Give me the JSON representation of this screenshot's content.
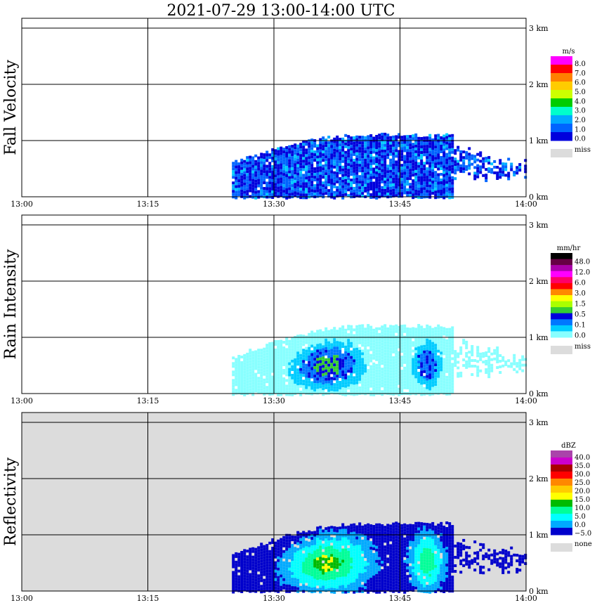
{
  "figure_title": "2021-07-29   13:00-14:00 UTC",
  "colors": {
    "frame": "#000000",
    "missing": "#dcdcdc",
    "background": "#ffffff"
  },
  "chart_data": [
    {
      "type": "heatmap",
      "title": "Fall Velocity",
      "x_ticks": [
        "13:00",
        "13:15",
        "13:30",
        "13:45",
        "14:00"
      ],
      "xlim": [
        "13:00",
        "14:00"
      ],
      "y_ticks": [
        "0 km",
        "1 km",
        "2 km",
        "3 km"
      ],
      "ylim": [
        0,
        3.2
      ],
      "grid": true,
      "background": "#ffffff",
      "legend": {
        "unit": "m/s",
        "placement": "right",
        "labels": [
          "8.0",
          "7.0",
          "6.0",
          "5.0",
          "4.0",
          "3.0",
          "2.0",
          "1.0",
          "0.0"
        ],
        "colors": [
          "#ff00ff",
          "#ff0000",
          "#ff8000",
          "#ffcc00",
          "#ccff00",
          "#00cc00",
          "#00ffcc",
          "#00aaff",
          "#0064ff",
          "#0000dd"
        ],
        "missing_label": "miss"
      },
      "echo_top_km": 1.1,
      "echo_start": "13:25",
      "echo_end": "14:00",
      "dominant_value_range": [
        0.0,
        2.0
      ]
    },
    {
      "type": "heatmap",
      "title": "Rain Intensity",
      "x_ticks": [
        "13:00",
        "13:15",
        "13:30",
        "13:45",
        "14:00"
      ],
      "xlim": [
        "13:00",
        "14:00"
      ],
      "y_ticks": [
        "0 km",
        "1 km",
        "2 km",
        "3 km"
      ],
      "ylim": [
        0,
        3.2
      ],
      "grid": true,
      "background": "#ffffff",
      "legend": {
        "unit": "mm/hr",
        "placement": "right",
        "labels": [
          "48.0",
          "12.0",
          "6.0",
          "3.0",
          "1.5",
          "0.5",
          "0.1",
          "0.0"
        ],
        "colors": [
          "#000000",
          "#660044",
          "#aa00aa",
          "#ff00ff",
          "#ff0066",
          "#ff0000",
          "#ff8800",
          "#ffff00",
          "#aaff00",
          "#33cc33",
          "#0000dd",
          "#0077ff",
          "#00ccff",
          "#88ffff"
        ],
        "missing_label": "miss"
      },
      "echo_top_km": 1.2,
      "echo_start": "13:25",
      "echo_end": "14:00",
      "peak_value_range": [
        0.5,
        1.5
      ]
    },
    {
      "type": "heatmap",
      "title": "Reflectivity",
      "x_ticks": [
        "13:00",
        "13:15",
        "13:30",
        "13:45",
        "14:00"
      ],
      "xlim": [
        "13:00",
        "14:00"
      ],
      "y_ticks": [
        "0 km",
        "1 km",
        "2 km",
        "3 km"
      ],
      "ylim": [
        0,
        3.2
      ],
      "grid": true,
      "background": "#dcdcdc",
      "legend": {
        "unit": "dBZ",
        "placement": "right",
        "labels": [
          "40.0",
          "35.0",
          "30.0",
          "25.0",
          "20.0",
          "15.0",
          "10.0",
          "5.0",
          "0.0",
          "−5.0"
        ],
        "colors": [
          "#aa44aa",
          "#cc00cc",
          "#aa0000",
          "#ff0000",
          "#ff8800",
          "#ffcc00",
          "#ffff00",
          "#00bb00",
          "#00ff99",
          "#00ffff",
          "#00aaff",
          "#0000cc"
        ],
        "missing_label": "none"
      },
      "echo_top_km": 1.2,
      "echo_start": "13:25",
      "echo_end": "14:00",
      "peak_value_range": [
        10.0,
        15.0
      ]
    }
  ]
}
